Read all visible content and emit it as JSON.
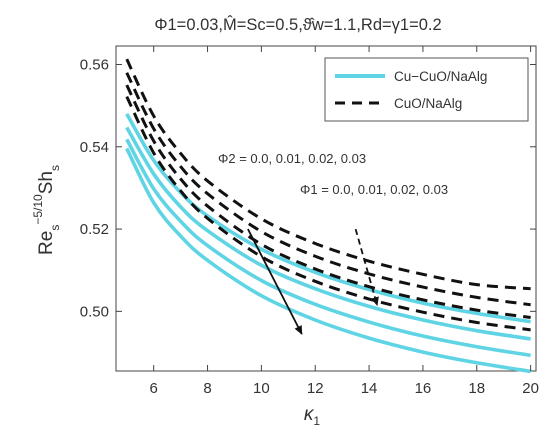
{
  "chart_data": {
    "type": "line",
    "title": "Φ1=0.03,M̂=Sc=0.5,ϑ̂w=1.1,Rd=γ1=0.2",
    "xlabel": {
      "base": "κ",
      "sub": "1"
    },
    "ylabel": {
      "base": "Re",
      "base_sub": "s",
      "sup": "−5/10",
      "mid": "Sh",
      "end_sub": "s"
    },
    "xlim": [
      4.6,
      20.2
    ],
    "ylim": [
      0.4855,
      0.5645
    ],
    "xticks": [
      6,
      8,
      10,
      12,
      14,
      16,
      18,
      20
    ],
    "xtick_labels": [
      "6",
      "8",
      "10",
      "12",
      "14",
      "16",
      "18",
      "20"
    ],
    "yticks": [
      0.5,
      0.52,
      0.54,
      0.56
    ],
    "ytick_labels": [
      "0.50",
      "0.52",
      "0.54",
      "0.56"
    ],
    "grid": false,
    "legend": {
      "position": "top-right",
      "entries": [
        {
          "label": "Cu−CuO/NaAlg",
          "style": "solid",
          "color": "#5fd4e4"
        },
        {
          "label": "CuO/NaAlg",
          "style": "dashed",
          "color": "#111111"
        }
      ]
    },
    "annotations": [
      {
        "text": "Φ2 = 0.0, 0.01, 0.02, 0.03"
      },
      {
        "text": "Φ1 = 0.0, 0.01, 0.02, 0.03"
      }
    ],
    "series": [
      {
        "group": "Cu−CuO/NaAlg",
        "style": "solid",
        "color": "#5fd4e4",
        "x": [
          5,
          6,
          7,
          8,
          10,
          12,
          14,
          16,
          18,
          20
        ],
        "y": [
          0.548,
          0.5367,
          0.5289,
          0.5232,
          0.5151,
          0.5095,
          0.5053,
          0.502,
          0.4995,
          0.4975
        ]
      },
      {
        "group": "Cu−CuO/NaAlg",
        "style": "solid",
        "color": "#5fd4e4",
        "x": [
          5,
          6,
          7,
          8,
          10,
          12,
          14,
          16,
          18,
          20
        ],
        "y": [
          0.5447,
          0.5334,
          0.5254,
          0.5196,
          0.5112,
          0.5055,
          0.5012,
          0.4979,
          0.4953,
          0.4933
        ]
      },
      {
        "group": "Cu−CuO/NaAlg",
        "style": "solid",
        "color": "#5fd4e4",
        "x": [
          5,
          6,
          7,
          8,
          10,
          12,
          14,
          16,
          18,
          20
        ],
        "y": [
          0.5418,
          0.5298,
          0.5219,
          0.516,
          0.5075,
          0.5017,
          0.4974,
          0.494,
          0.4914,
          0.4893
        ]
      },
      {
        "group": "Cu−CuO/NaAlg",
        "style": "solid",
        "color": "#5fd4e4",
        "x": [
          5,
          6,
          7,
          8,
          10,
          12,
          14,
          16,
          18,
          20
        ],
        "y": [
          0.5396,
          0.5264,
          0.5183,
          0.5124,
          0.5038,
          0.4979,
          0.4935,
          0.4901,
          0.4875,
          0.4854
        ]
      },
      {
        "group": "CuO/NaAlg",
        "style": "dashed",
        "color": "#111111",
        "x": [
          5,
          6,
          7,
          8,
          10,
          12,
          14,
          16,
          18,
          20
        ],
        "y": [
          0.5613,
          0.5475,
          0.5384,
          0.5317,
          0.5225,
          0.5165,
          0.5122,
          0.509,
          0.5065,
          0.5055
        ]
      },
      {
        "group": "CuO/NaAlg",
        "style": "dashed",
        "color": "#111111",
        "x": [
          5,
          6,
          7,
          8,
          10,
          12,
          14,
          16,
          18,
          20
        ],
        "y": [
          0.558,
          0.5444,
          0.5352,
          0.5286,
          0.5194,
          0.5134,
          0.5091,
          0.5059,
          0.5034,
          0.5016
        ]
      },
      {
        "group": "CuO/NaAlg",
        "style": "dashed",
        "color": "#111111",
        "x": [
          5,
          6,
          7,
          8,
          10,
          12,
          14,
          16,
          18,
          20
        ],
        "y": [
          0.555,
          0.5414,
          0.5322,
          0.5256,
          0.5163,
          0.5103,
          0.506,
          0.5028,
          0.5003,
          0.4985
        ]
      },
      {
        "group": "CuO/NaAlg",
        "style": "dashed",
        "color": "#111111",
        "x": [
          5,
          6,
          7,
          8,
          10,
          12,
          14,
          16,
          18,
          20
        ],
        "y": [
          0.5522,
          0.5385,
          0.5293,
          0.5226,
          0.5133,
          0.5073,
          0.503,
          0.4998,
          0.4973,
          0.4955
        ]
      }
    ],
    "arrows": [
      {
        "from": [
          9.5,
          0.52
        ],
        "to": [
          11.5,
          0.4945
        ],
        "style": "solid"
      },
      {
        "from": [
          13.5,
          0.52
        ],
        "to": [
          14.3,
          0.5015
        ],
        "style": "dashed"
      }
    ]
  }
}
